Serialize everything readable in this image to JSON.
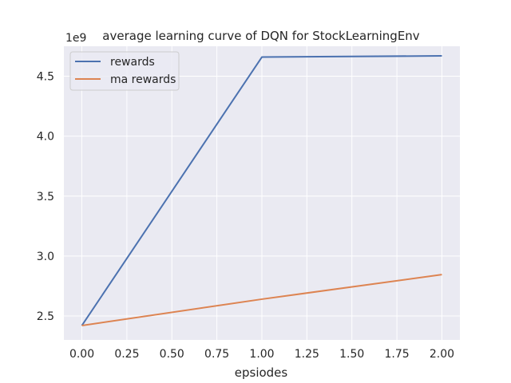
{
  "chart_data": {
    "type": "line",
    "title": "average learning curve of DQN for StockLearningEnv",
    "xlabel": "epsiodes",
    "ylabel": "",
    "y_offset_label": "1e9",
    "xlim": [
      -0.1,
      2.1
    ],
    "ylim": [
      2.3,
      4.75
    ],
    "x_ticks": [
      0.0,
      0.25,
      0.5,
      0.75,
      1.0,
      1.25,
      1.5,
      1.75,
      2.0
    ],
    "x_tick_labels": [
      "0.00",
      "0.25",
      "0.50",
      "0.75",
      "1.00",
      "1.25",
      "1.50",
      "1.75",
      "2.00"
    ],
    "y_ticks": [
      2.5,
      3.0,
      3.5,
      4.0,
      4.5
    ],
    "y_tick_labels": [
      "2.5",
      "3.0",
      "3.5",
      "4.0",
      "4.5"
    ],
    "grid": true,
    "legend_position": "top-left",
    "x": [
      0,
      1,
      2
    ],
    "series": [
      {
        "name": "rewards",
        "color": "#4c72b0",
        "values": [
          2.42,
          4.66,
          4.67
        ]
      },
      {
        "name": "ma rewards",
        "color": "#dd8452",
        "values": [
          2.42,
          2.64,
          2.845
        ]
      }
    ],
    "background_color": "#eaeaf2",
    "grid_color": "#ffffff"
  }
}
